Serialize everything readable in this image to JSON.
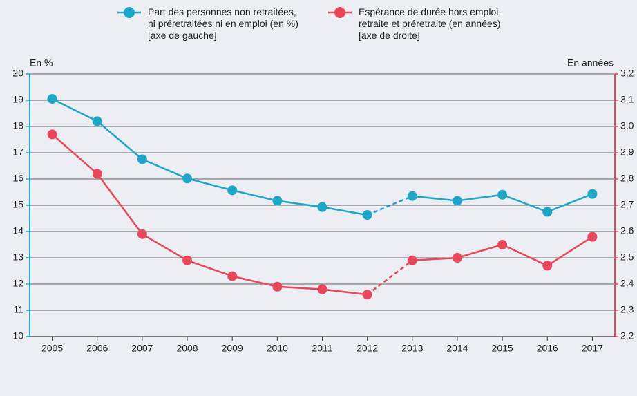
{
  "chart_data": {
    "type": "line",
    "x": [
      2005,
      2006,
      2007,
      2008,
      2009,
      2010,
      2011,
      2012,
      2013,
      2014,
      2015,
      2016,
      2017
    ],
    "xlim": [
      2004.5,
      2017.5
    ],
    "xticks": [
      2005,
      2006,
      2007,
      2008,
      2009,
      2010,
      2011,
      2012,
      2013,
      2014,
      2015,
      2016,
      2017
    ],
    "ylabel": "En %",
    "y2label": "En années",
    "ylim": [
      10,
      20
    ],
    "yticks": [
      10,
      11,
      12,
      13,
      14,
      15,
      16,
      17,
      18,
      19,
      20
    ],
    "y2lim": [
      2.2,
      3.2
    ],
    "y2ticks": [
      {
        "value": 2.2,
        "label": "2,2"
      },
      {
        "value": 2.3,
        "label": "2,3"
      },
      {
        "value": 2.4,
        "label": "2,4"
      },
      {
        "value": 2.5,
        "label": "2,5"
      },
      {
        "value": 2.6,
        "label": "2,6"
      },
      {
        "value": 2.7,
        "label": "2,7"
      },
      {
        "value": 2.8,
        "label": "2,8"
      },
      {
        "value": 2.9,
        "label": "2,9"
      },
      {
        "value": 3.0,
        "label": "3,0"
      },
      {
        "value": 3.1,
        "label": "3,1"
      },
      {
        "value": 3.2,
        "label": "3,2"
      }
    ],
    "grid": true,
    "legend": "top",
    "dashed_segment": {
      "from": 2012,
      "to": 2013
    },
    "series": [
      {
        "name": "Part des personnes non retraitées,\nni préretraitées ni en emploi (en %)\n[axe de gauche]",
        "color": "#1ea6c9",
        "axis": "y",
        "values": [
          19.05,
          18.2,
          16.75,
          16.02,
          15.57,
          15.17,
          14.93,
          14.63,
          15.35,
          15.17,
          15.4,
          14.75,
          15.43
        ]
      },
      {
        "name": "Espérance de durée hors emploi,\nretraite et préretraite (en années)\n[axe de droite]",
        "color": "#e8465b",
        "axis": "y2",
        "values": [
          2.97,
          2.82,
          2.59,
          2.49,
          2.43,
          2.39,
          2.38,
          2.36,
          2.49,
          2.5,
          2.55,
          2.47,
          2.58
        ]
      }
    ]
  }
}
